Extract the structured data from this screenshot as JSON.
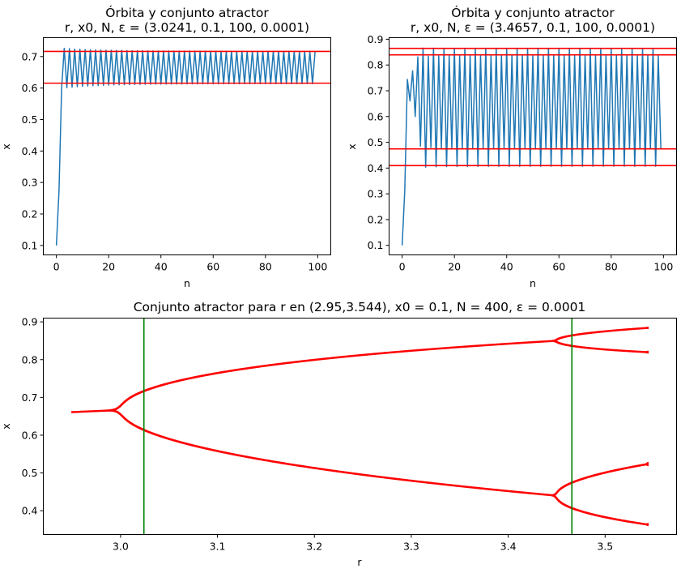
{
  "chart_data": [
    {
      "type": "line",
      "title": "Órbita y conjunto atractor",
      "subtitle": "r, x0, N, ε = (3.0241, 0.1, 100, 0.0001)",
      "xlabel": "n",
      "ylabel": "x",
      "xlim": [
        -5,
        105
      ],
      "ylim": [
        0.07,
        0.76
      ],
      "xticks": [
        0,
        20,
        40,
        60,
        80,
        100
      ],
      "yticks": [
        0.1,
        0.2,
        0.3,
        0.4,
        0.5,
        0.6,
        0.7
      ],
      "orbit": {
        "r": 3.0241,
        "x0": 0.1,
        "N": 100,
        "color": "#1f77b4"
      },
      "attractor_lines": {
        "y": [
          0.6155,
          0.7163
        ],
        "color": "#ff0000"
      },
      "grid": false
    },
    {
      "type": "line",
      "title": "Órbita y conjunto atractor",
      "subtitle": "r, x0, N, ε = (3.4657, 0.1, 100, 0.0001)",
      "xlabel": "n",
      "ylabel": "x",
      "xlim": [
        -5,
        105
      ],
      "ylim": [
        0.063,
        0.906
      ],
      "xticks": [
        0,
        20,
        40,
        60,
        80,
        100
      ],
      "yticks": [
        0.1,
        0.2,
        0.3,
        0.4,
        0.5,
        0.6,
        0.7,
        0.8,
        0.9
      ],
      "orbit": {
        "r": 3.4657,
        "x0": 0.1,
        "N": 100,
        "color": "#1f77b4"
      },
      "attractor_lines": {
        "y": [
          0.4097,
          0.4744,
          0.8393,
          0.8645
        ],
        "color": "#ff0000"
      },
      "grid": false
    },
    {
      "type": "scatter",
      "title": "Conjunto atractor para r en (2.95,3.544), x0 = 0.1, N = 400, ε = 0.0001",
      "xlabel": "r",
      "ylabel": "x",
      "xlim": [
        2.9203,
        3.5737
      ],
      "ylim": [
        0.337,
        0.91
      ],
      "xticks": [
        3.0,
        3.1,
        3.2,
        3.3,
        3.4,
        3.5
      ],
      "xtick_labels": [
        "3.0",
        "3.1",
        "3.2",
        "3.3",
        "3.4",
        "3.5"
      ],
      "yticks": [
        0.4,
        0.5,
        0.6,
        0.7,
        0.8,
        0.9
      ],
      "r_range": [
        2.95,
        3.544
      ],
      "x0": 0.1,
      "N": 400,
      "epsilon": 0.0001,
      "color": "#ff0000",
      "vertical_lines": {
        "x": [
          3.0241,
          3.4657
        ],
        "color": "#008000"
      },
      "grid": false
    }
  ]
}
